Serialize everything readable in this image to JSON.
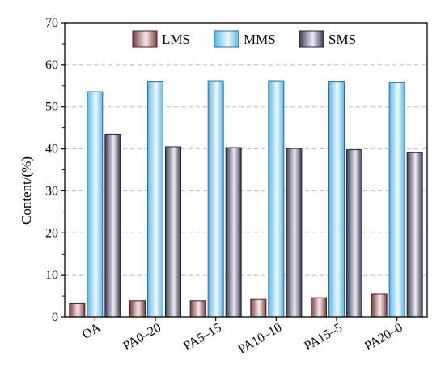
{
  "chart_data": {
    "type": "bar",
    "categories": [
      "OA",
      "PA0–20",
      "PA5–15",
      "PA10–10",
      "PA15–5",
      "PA20–0"
    ],
    "series": [
      {
        "name": "LMS",
        "values": [
          3.2,
          3.9,
          3.9,
          4.2,
          4.6,
          5.4
        ],
        "color": "#8a4a4a"
      },
      {
        "name": "MMS",
        "values": [
          53.6,
          56.0,
          56.1,
          56.1,
          56.0,
          55.8
        ],
        "color": "#6fc6f2"
      },
      {
        "name": "SMS",
        "values": [
          43.5,
          40.5,
          40.3,
          40.1,
          39.8,
          39.1
        ],
        "color": "#4a4a66"
      }
    ],
    "xlabel": "",
    "ylabel": "Content/(%)",
    "ylim": [
      0,
      70
    ],
    "yticks": [
      0,
      10,
      20,
      30,
      40,
      50,
      60,
      70
    ],
    "grid": "horizontal dashed",
    "legend": "top-center"
  }
}
